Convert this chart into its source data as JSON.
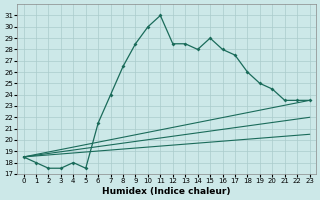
{
  "xlabel": "Humidex (Indice chaleur)",
  "xlim": [
    -0.5,
    23.5
  ],
  "ylim": [
    17,
    32
  ],
  "yticks": [
    17,
    18,
    19,
    20,
    21,
    22,
    23,
    24,
    25,
    26,
    27,
    28,
    29,
    30,
    31
  ],
  "xticks": [
    0,
    1,
    2,
    3,
    4,
    5,
    6,
    7,
    8,
    9,
    10,
    11,
    12,
    13,
    14,
    15,
    16,
    17,
    18,
    19,
    20,
    21,
    22,
    23
  ],
  "bg_color": "#cce8e8",
  "line_color": "#1a6b5a",
  "grid_color": "#aacccc",
  "main_x": [
    0,
    1,
    2,
    3,
    4,
    5,
    6,
    7,
    8,
    9,
    10,
    11,
    12,
    13,
    14,
    15,
    16,
    17,
    18,
    19,
    20,
    21,
    22,
    23
  ],
  "main_y": [
    18.5,
    18.0,
    17.5,
    17.5,
    18.0,
    17.5,
    21.5,
    24.0,
    26.5,
    28.5,
    30.0,
    31.0,
    28.5,
    28.5,
    28.0,
    29.0,
    28.0,
    27.5,
    26.0,
    25.0,
    24.5,
    23.5,
    23.5,
    23.5
  ],
  "fan_lines": [
    {
      "x": [
        0,
        23
      ],
      "y": [
        18.5,
        23.5
      ]
    },
    {
      "x": [
        0,
        23
      ],
      "y": [
        18.5,
        20.5
      ]
    },
    {
      "x": [
        0,
        23
      ],
      "y": [
        18.5,
        22.0
      ]
    }
  ],
  "xlabel_fontsize": 6.5,
  "tick_fontsize": 5.0
}
